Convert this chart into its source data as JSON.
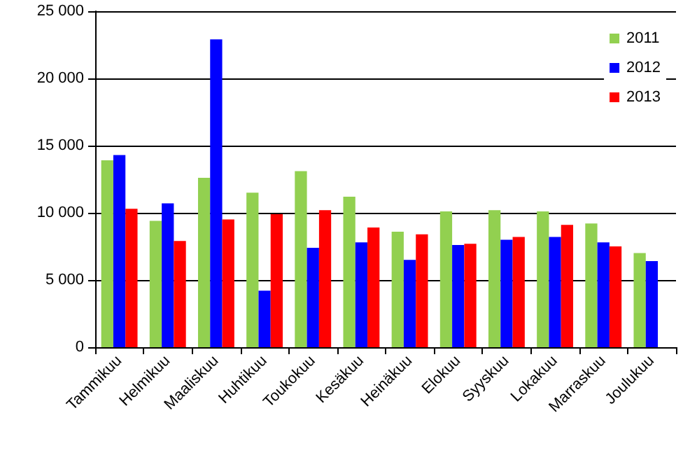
{
  "chart_data": {
    "type": "bar",
    "categories": [
      "Tammikuu",
      "Helmikuu",
      "Maaliskuu",
      "Huhtikuu",
      "Toukokuu",
      "Kesäkuu",
      "Heinäkuu",
      "Elokuu",
      "Syyskuu",
      "Lokakuu",
      "Marraskuu",
      "Joulukuu"
    ],
    "series": [
      {
        "name": "2011",
        "color": "#92d050",
        "values": [
          13900,
          9400,
          12600,
          11500,
          13100,
          11200,
          8600,
          10100,
          10200,
          10100,
          9200,
          7000
        ]
      },
      {
        "name": "2012",
        "color": "#0000ff",
        "values": [
          14300,
          10700,
          22900,
          4200,
          7400,
          7800,
          6500,
          7600,
          8000,
          8200,
          7800,
          6400
        ]
      },
      {
        "name": "2013",
        "color": "#ff0000",
        "values": [
          10300,
          7900,
          9500,
          9900,
          10200,
          8900,
          8400,
          7700,
          8200,
          9100,
          7500,
          null
        ]
      }
    ],
    "ylim": [
      0,
      25000
    ],
    "yticks": [
      {
        "value": 0,
        "label": "0"
      },
      {
        "value": 5000,
        "label": "5 000"
      },
      {
        "value": 10000,
        "label": "10 000"
      },
      {
        "value": 15000,
        "label": "15 000"
      },
      {
        "value": 20000,
        "label": "20 000"
      },
      {
        "value": 25000,
        "label": "25 000"
      }
    ],
    "grid": "y",
    "legend": "top right"
  }
}
